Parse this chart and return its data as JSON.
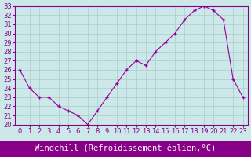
{
  "hours": [
    0,
    1,
    2,
    3,
    4,
    5,
    6,
    7,
    8,
    9,
    10,
    11,
    12,
    13,
    14,
    15,
    16,
    17,
    18,
    19,
    20,
    21,
    22,
    23
  ],
  "values": [
    26,
    24,
    23,
    23,
    22,
    21.5,
    21,
    20,
    21.5,
    23,
    24.5,
    26,
    27,
    26.5,
    28,
    29,
    30,
    31.5,
    32.5,
    33,
    32.5,
    31.5,
    25,
    23
  ],
  "line_color": "#990099",
  "marker": "+",
  "bg_color": "#cce8e8",
  "grid_color": "#aacccc",
  "xlabel": "Windchill (Refroidissement éolien,°C)",
  "xlabel_bg": "#880088",
  "xlabel_color": "#ffffff",
  "ylim": [
    20,
    33
  ],
  "yticks": [
    20,
    21,
    22,
    23,
    24,
    25,
    26,
    27,
    28,
    29,
    30,
    31,
    32,
    33
  ],
  "xtick_labels": [
    "0",
    "1",
    "2",
    "3",
    "4",
    "5",
    "6",
    "7",
    "8",
    "9",
    "10",
    "11",
    "12",
    "13",
    "14",
    "15",
    "16",
    "17",
    "18",
    "19",
    "20",
    "21",
    "22",
    "23"
  ],
  "tick_color": "#880088",
  "label_fontsize": 7.5,
  "tick_fontsize": 6.0,
  "spine_color": "#880088"
}
